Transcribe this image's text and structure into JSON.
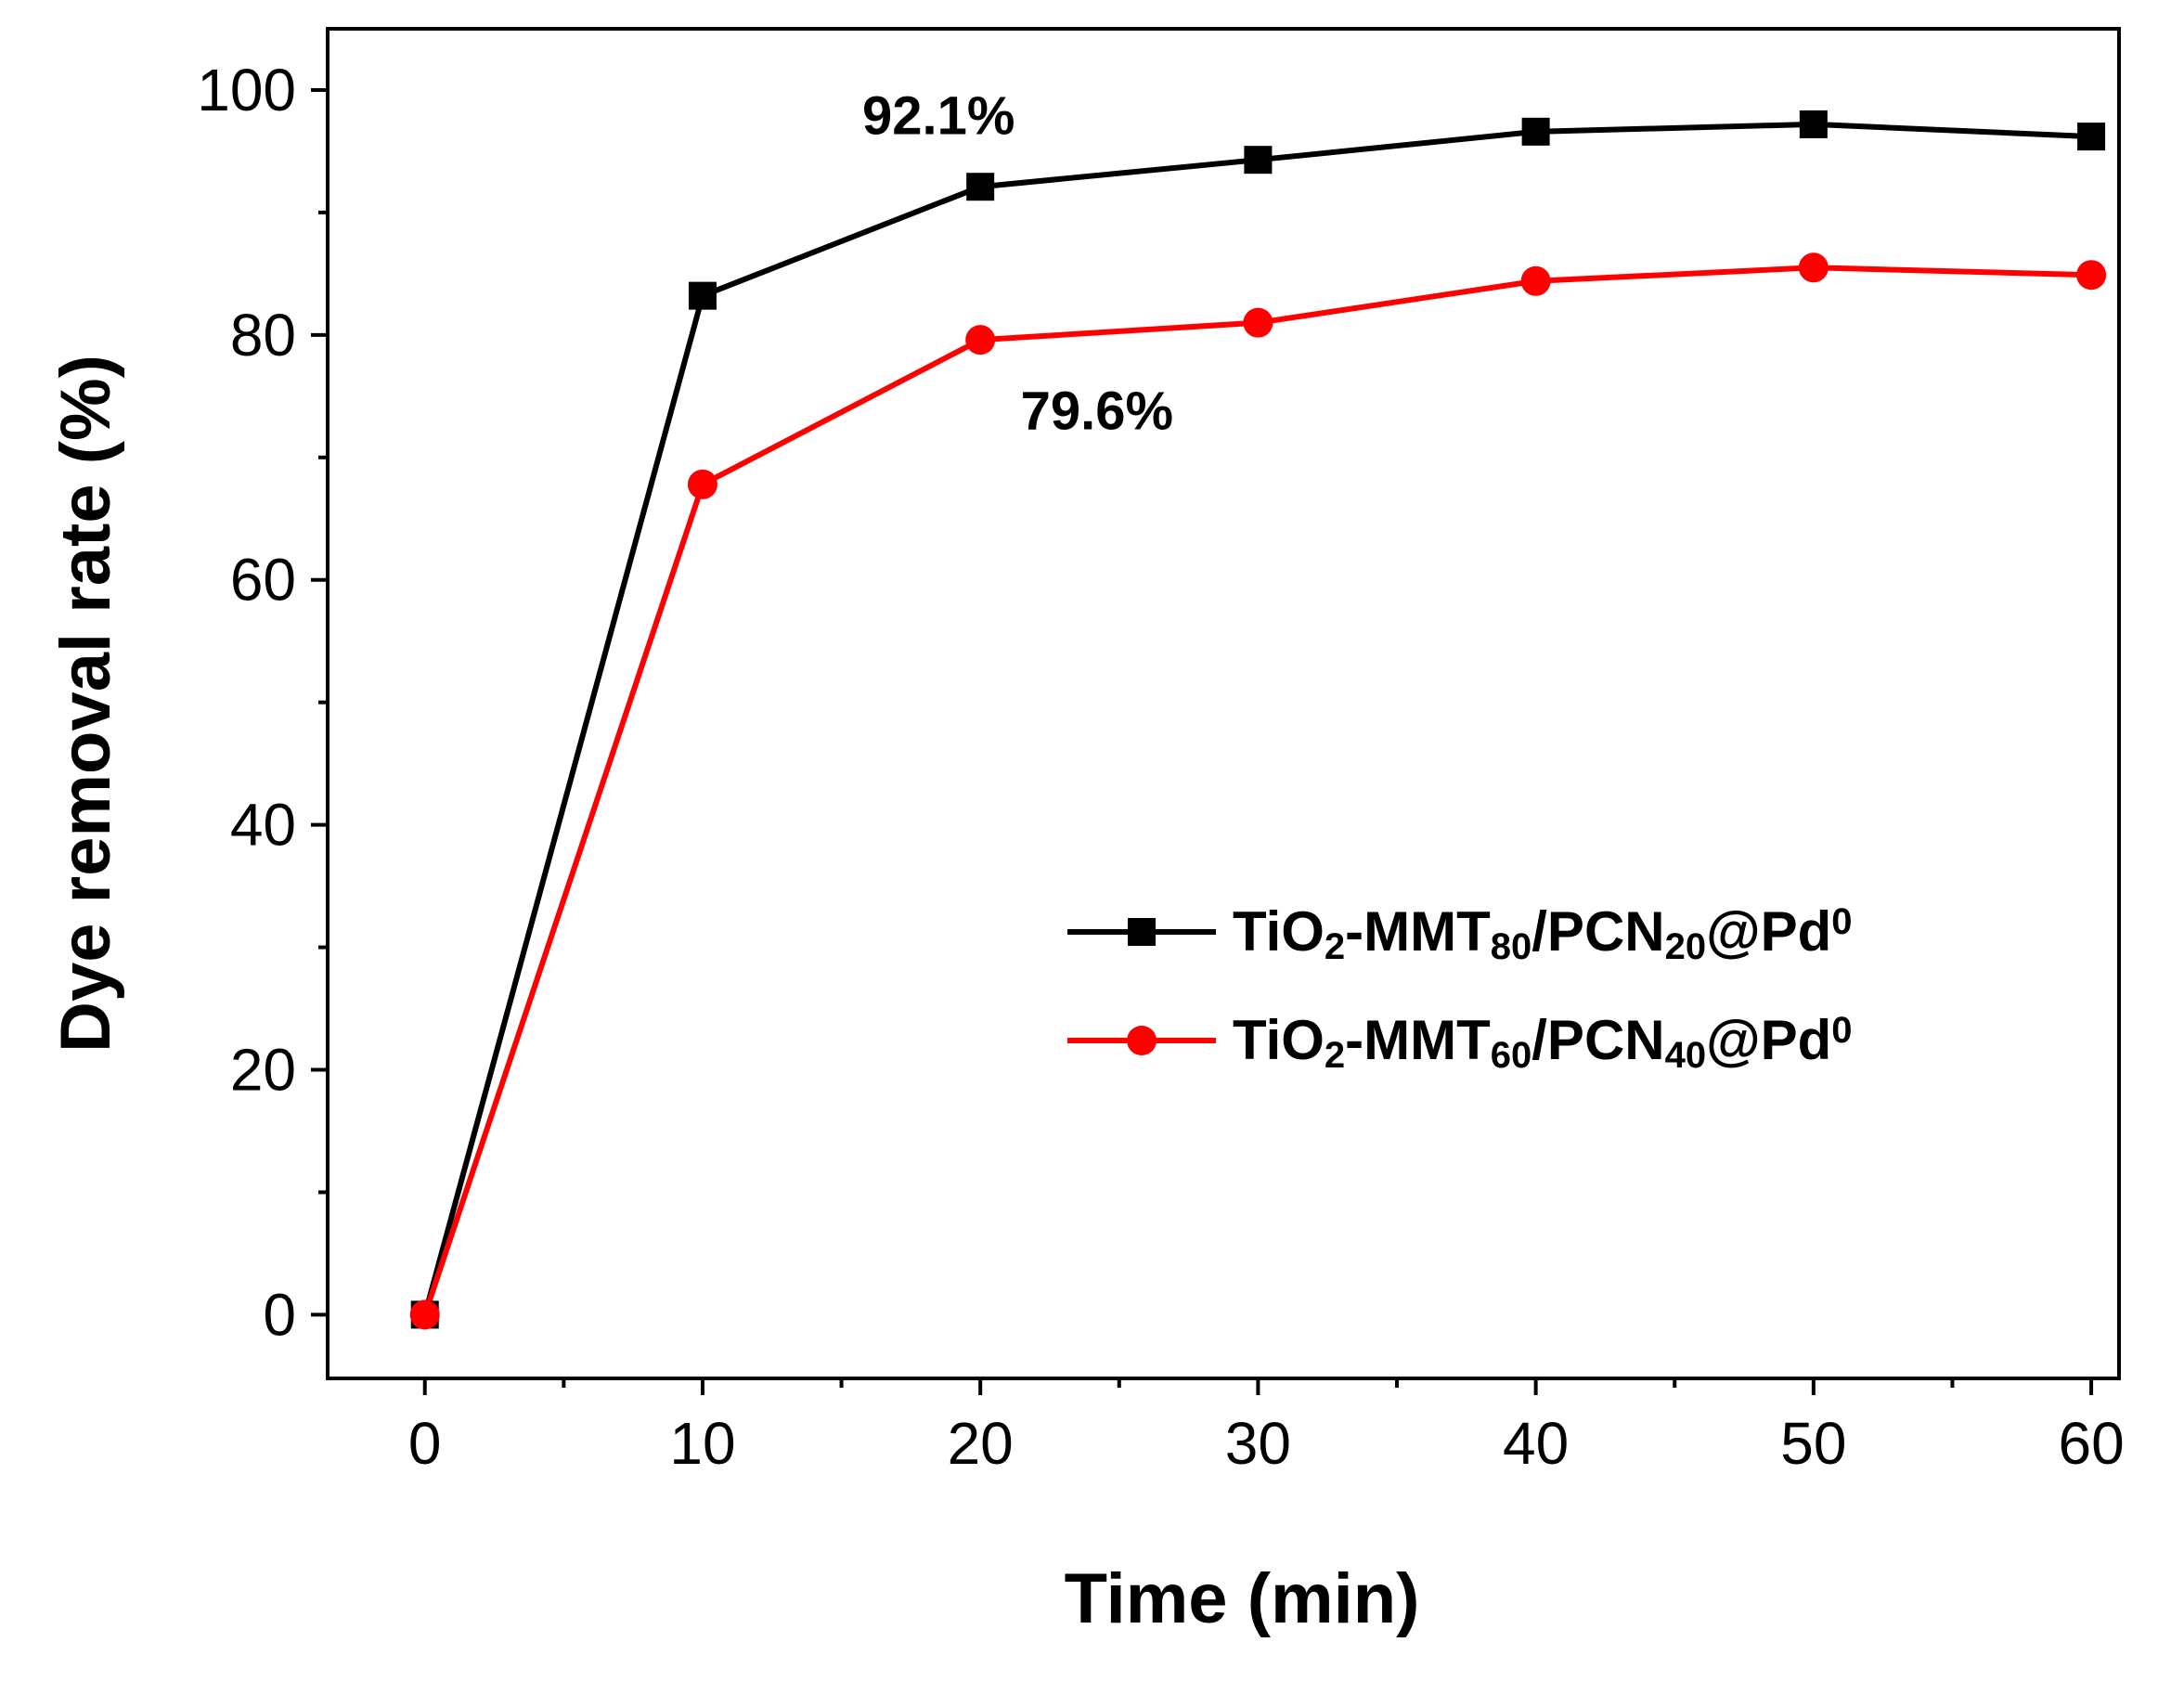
{
  "chart_data": {
    "type": "line",
    "title": "",
    "xlabel": "Time (min)",
    "ylabel": "Dye removal rate (%)",
    "xlim": [
      -3.5,
      61
    ],
    "ylim": [
      -5.2,
      105
    ],
    "x_ticks": [
      0,
      10,
      20,
      30,
      40,
      50,
      60
    ],
    "x_minor_ticks": [
      5,
      15,
      25,
      35,
      45,
      55
    ],
    "y_ticks": [
      0,
      20,
      40,
      60,
      80,
      100
    ],
    "y_minor_ticks": [
      10,
      30,
      50,
      70,
      90
    ],
    "x": [
      0,
      10,
      20,
      30,
      40,
      50,
      60
    ],
    "series": [
      {
        "name": "TiO2-MMT80/PCN20@Pd0",
        "legend_parts": [
          {
            "t": "TiO",
            "s": "n"
          },
          {
            "t": "2",
            "s": "sub"
          },
          {
            "t": "-MMT",
            "s": "n"
          },
          {
            "t": "80",
            "s": "sub"
          },
          {
            "t": "/PCN",
            "s": "n"
          },
          {
            "t": "20",
            "s": "sub"
          },
          {
            "t": "@Pd",
            "s": "n"
          },
          {
            "t": "0",
            "s": "sup"
          }
        ],
        "color": "#000000",
        "marker": "square",
        "values": [
          0,
          83.2,
          92.1,
          94.3,
          96.6,
          97.2,
          96.2
        ]
      },
      {
        "name": "TiO2-MMT60/PCN40@Pd0",
        "legend_parts": [
          {
            "t": "TiO",
            "s": "n"
          },
          {
            "t": "2",
            "s": "sub"
          },
          {
            "t": "-MMT",
            "s": "n"
          },
          {
            "t": "60",
            "s": "sub"
          },
          {
            "t": "/PCN",
            "s": "n"
          },
          {
            "t": "40",
            "s": "sub"
          },
          {
            "t": "@Pd",
            "s": "n"
          },
          {
            "t": "0",
            "s": "sup"
          }
        ],
        "color": "#ff0000",
        "marker": "circle",
        "values": [
          0,
          67.8,
          79.6,
          81.0,
          84.4,
          85.5,
          84.9
        ]
      }
    ],
    "annotations": [
      {
        "text": "92.1%",
        "x": 18.5,
        "y": 96.4
      },
      {
        "text": "79.6%",
        "x": 24.2,
        "y": 72.3
      }
    ],
    "legend_position": "center-right",
    "grid": false
  }
}
